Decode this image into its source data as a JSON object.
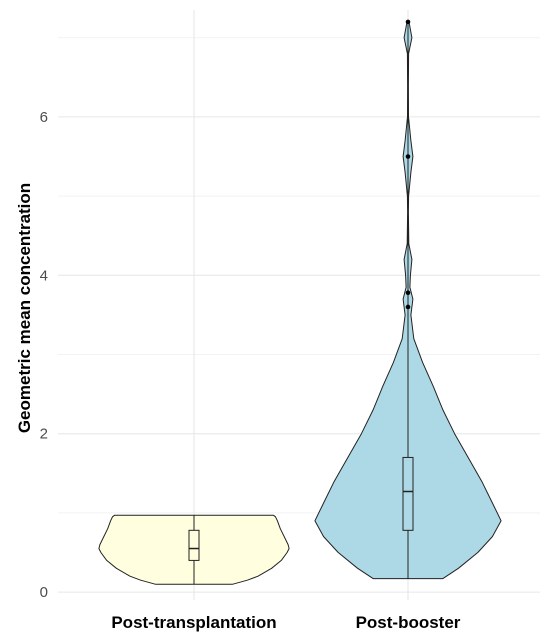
{
  "chart_data": {
    "type": "violin",
    "title": "",
    "xlabel": "",
    "ylabel": "Geometric mean concentration",
    "ylim": [
      -0.1,
      7.35
    ],
    "yticks": [
      0,
      2,
      4,
      6
    ],
    "grid": true,
    "legend": "none",
    "categories": [
      "Post-transplantation",
      "Post-booster"
    ],
    "groups": [
      {
        "name": "Post-transplantation",
        "fill": "#ffffe0",
        "violin": {
          "min": 0.1,
          "max": 0.97,
          "profile": [
            [
              0.1,
              0.4
            ],
            [
              0.15,
              0.55
            ],
            [
              0.2,
              0.66
            ],
            [
              0.3,
              0.8
            ],
            [
              0.4,
              0.9
            ],
            [
              0.5,
              0.96
            ],
            [
              0.55,
              0.98
            ],
            [
              0.6,
              0.97
            ],
            [
              0.7,
              0.93
            ],
            [
              0.8,
              0.89
            ],
            [
              0.9,
              0.86
            ],
            [
              0.95,
              0.84
            ],
            [
              0.97,
              0.82
            ]
          ]
        },
        "box": {
          "lower_whisker": 0.1,
          "q1": 0.4,
          "median": 0.55,
          "q3": 0.78,
          "upper_whisker": 0.97
        },
        "outliers": []
      },
      {
        "name": "Post-booster",
        "fill": "#add8e6",
        "violin": {
          "min": 0.17,
          "max": 7.2,
          "profile": [
            [
              0.17,
              0.36
            ],
            [
              0.3,
              0.52
            ],
            [
              0.5,
              0.72
            ],
            [
              0.7,
              0.87
            ],
            [
              0.9,
              0.96
            ],
            [
              1.1,
              0.88
            ],
            [
              1.4,
              0.76
            ],
            [
              1.7,
              0.62
            ],
            [
              2.0,
              0.48
            ],
            [
              2.3,
              0.36
            ],
            [
              2.6,
              0.26
            ],
            [
              2.9,
              0.15
            ],
            [
              3.2,
              0.06
            ],
            [
              3.5,
              0.03
            ],
            [
              3.7,
              0.05
            ],
            [
              3.85,
              0.02
            ],
            [
              4.0,
              0.025
            ],
            [
              4.2,
              0.04
            ],
            [
              4.4,
              0.008
            ],
            [
              4.8,
              0.004
            ],
            [
              5.0,
              0.006
            ],
            [
              5.3,
              0.03
            ],
            [
              5.5,
              0.05
            ],
            [
              5.7,
              0.03
            ],
            [
              6.0,
              0.005
            ],
            [
              6.4,
              0.004
            ],
            [
              6.8,
              0.006
            ],
            [
              7.0,
              0.04
            ],
            [
              7.2,
              0.01
            ]
          ]
        },
        "box": {
          "lower_whisker": 0.17,
          "q1": 0.78,
          "median": 1.27,
          "q3": 1.7,
          "upper_whisker": 7.2
        },
        "outliers": [
          3.6,
          3.78,
          5.5,
          7.2
        ]
      }
    ]
  }
}
